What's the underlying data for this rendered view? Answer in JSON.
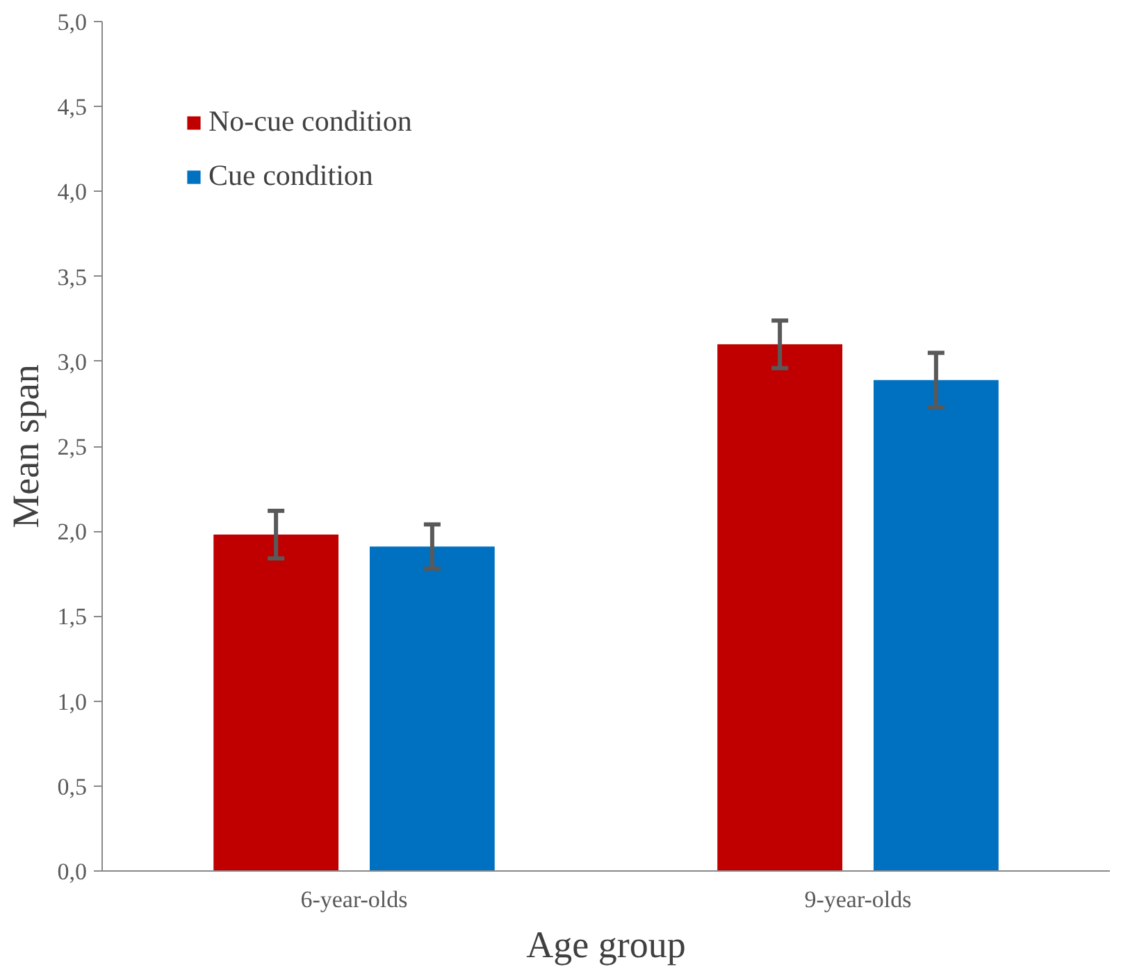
{
  "chart_data": {
    "type": "bar",
    "xlabel": "Age group",
    "ylabel": "Mean span",
    "categories": [
      "6-year-olds",
      "9-year-olds"
    ],
    "series": [
      {
        "name": "No-cue condition",
        "color": "#c00000",
        "values": [
          1.98,
          3.1
        ],
        "errors": [
          0.14,
          0.14
        ]
      },
      {
        "name": "Cue condition",
        "color": "#0070c0",
        "values": [
          1.91,
          2.89
        ],
        "errors": [
          0.13,
          0.16
        ]
      }
    ],
    "ylim": [
      0,
      5
    ],
    "yticks": [
      {
        "value": 0,
        "label": "0,0"
      },
      {
        "value": 0.5,
        "label": "0,5"
      },
      {
        "value": 1,
        "label": "1,0"
      },
      {
        "value": 1.5,
        "label": "1,5"
      },
      {
        "value": 2,
        "label": "2,0"
      },
      {
        "value": 2.5,
        "label": "2,5"
      },
      {
        "value": 3,
        "label": "3,0"
      },
      {
        "value": 3.5,
        "label": "3,5"
      },
      {
        "value": 4,
        "label": "4,0"
      },
      {
        "value": 4.5,
        "label": "4,5"
      },
      {
        "value": 5,
        "label": "5,0"
      }
    ],
    "grid": false,
    "legend": "top left"
  }
}
